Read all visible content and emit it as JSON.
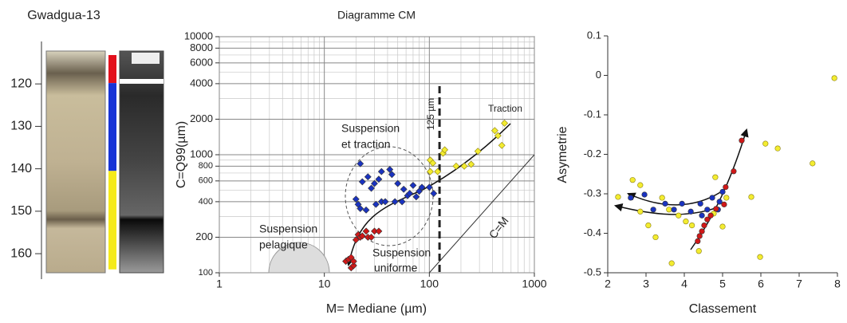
{
  "chart_data": [
    {
      "type": "core",
      "title": "Gwadgua-13",
      "ylim": [
        110,
        166
      ],
      "yticks": [
        120,
        130,
        140,
        150,
        160
      ],
      "inverted": true,
      "segments": [
        {
          "color": "#e3101c",
          "from": 113.2,
          "to": 119.8
        },
        {
          "color": "#1733d6",
          "from": 119.8,
          "to": 140.5
        },
        {
          "color": "#f5ea1a",
          "from": 140.5,
          "to": 163.7
        }
      ]
    },
    {
      "type": "scatter",
      "title": "Diagramme CM",
      "xlabel": "M= Mediane (µm)",
      "ylabel": "C=Q99(µm)",
      "xlog": true,
      "ylog": true,
      "grid": true,
      "marker": "diamond",
      "xlim": [
        1,
        1000
      ],
      "ylim": [
        100,
        10000
      ],
      "xticks": [
        1,
        10,
        100,
        1000
      ],
      "yticks": [
        100,
        200,
        400,
        600,
        800,
        1000,
        2000,
        4000,
        6000,
        8000,
        10000
      ],
      "xminor": [
        2,
        3,
        4,
        5,
        6,
        7,
        8,
        9,
        20,
        30,
        40,
        50,
        60,
        70,
        80,
        90,
        200,
        300,
        400,
        500,
        600,
        700,
        800,
        900
      ],
      "yminor": [
        300,
        500,
        700,
        900,
        3000,
        5000,
        7000,
        9000
      ],
      "vline": {
        "value": 125,
        "label": "125 µm"
      },
      "annotations": [
        "Traction",
        "Suspension",
        "et traction",
        "Suspension",
        "pelagique",
        "Suspension",
        "uniforme",
        "C=M"
      ],
      "series": [
        {
          "color": "#d01818",
          "x": [
            16,
            17,
            18,
            18,
            19,
            19,
            20,
            21,
            22,
            23,
            25,
            26,
            28,
            30,
            33
          ],
          "y": [
            125,
            130,
            135,
            110,
            115,
            125,
            190,
            210,
            200,
            205,
            225,
            200,
            200,
            225,
            225
          ]
        },
        {
          "color": "#1a33c0",
          "x": [
            20,
            21,
            22,
            22,
            23,
            25,
            26,
            28,
            30,
            31,
            33,
            35,
            35,
            38,
            42,
            44,
            47,
            50,
            55,
            57,
            62,
            65,
            70,
            75,
            80,
            85,
            100,
            110
          ],
          "y": [
            420,
            380,
            840,
            350,
            590,
            340,
            650,
            520,
            570,
            380,
            620,
            720,
            400,
            400,
            750,
            680,
            400,
            570,
            400,
            510,
            450,
            470,
            550,
            440,
            490,
            530,
            530,
            470
          ]
        },
        {
          "color": "#f3ec30",
          "x": [
            102,
            102,
            108,
            120,
            135,
            140,
            180,
            215,
            250,
            290,
            420,
            450,
            490,
            520
          ],
          "y": [
            900,
            720,
            850,
            720,
            1030,
            1100,
            800,
            800,
            830,
            1070,
            1600,
            1450,
            1200,
            1850
          ]
        }
      ]
    },
    {
      "type": "scatter",
      "xlabel": "Classement",
      "ylabel": "Asymetrie",
      "marker": "circle",
      "xlim": [
        2,
        8
      ],
      "ylim": [
        -0.5,
        0.1
      ],
      "xticks": [
        2,
        3,
        4,
        5,
        6,
        7,
        8
      ],
      "yticks": [
        -0.5,
        -0.4,
        -0.3,
        -0.2,
        -0.1,
        0,
        0.1
      ],
      "series": [
        {
          "color": "#f3ec30",
          "x": [
            2.27,
            2.65,
            2.85,
            2.85,
            3.06,
            3.25,
            3.42,
            3.6,
            3.67,
            3.85,
            4.04,
            4.2,
            4.38,
            4.77,
            4.81,
            5.0,
            5.1,
            5.75,
            5.98,
            6.12,
            6.44,
            7.35,
            7.92
          ],
          "y": [
            -0.308,
            -0.265,
            -0.278,
            -0.345,
            -0.38,
            -0.41,
            -0.31,
            -0.34,
            -0.476,
            -0.355,
            -0.37,
            -0.38,
            -0.445,
            -0.35,
            -0.258,
            -0.383,
            -0.31,
            -0.308,
            -0.46,
            -0.173,
            -0.185,
            -0.223,
            -0.007
          ]
        },
        {
          "color": "#1a33c0",
          "x": [
            2.6,
            2.96,
            3.19,
            3.5,
            3.73,
            3.94,
            4.17,
            4.42,
            4.6,
            4.73,
            4.92,
            5.0,
            4.88,
            4.46
          ],
          "y": [
            -0.31,
            -0.302,
            -0.34,
            -0.325,
            -0.34,
            -0.325,
            -0.345,
            -0.325,
            -0.34,
            -0.31,
            -0.32,
            -0.295,
            -0.34,
            -0.355
          ]
        },
        {
          "color": "#d01818",
          "x": [
            4.35,
            4.4,
            4.46,
            4.52,
            4.6,
            4.69,
            4.83,
            5.08,
            5.29,
            5.5,
            5.04
          ],
          "y": [
            -0.42,
            -0.407,
            -0.395,
            -0.38,
            -0.365,
            -0.355,
            -0.338,
            -0.283,
            -0.243,
            -0.165,
            -0.327
          ]
        }
      ]
    }
  ]
}
